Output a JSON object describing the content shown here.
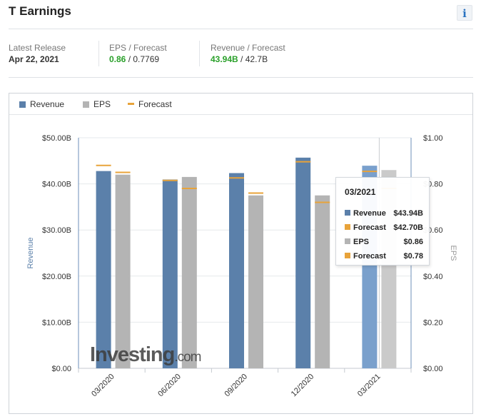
{
  "header": {
    "title": "T Earnings",
    "info_glyph": "i"
  },
  "release": {
    "latest_label": "Latest Release",
    "latest_date": "Apr 22, 2021",
    "eps_label": "EPS / Forecast",
    "eps_actual": "0.86",
    "eps_forecast": "0.7769",
    "rev_label": "Revenue / Forecast",
    "rev_actual": "43.94B",
    "rev_forecast": "42.7B",
    "separator": " / "
  },
  "colors": {
    "revenue": "#5b80aa",
    "eps": "#b4b4b4",
    "forecast": "#e8a33a",
    "actual_green": "#2aa02a"
  },
  "legend": {
    "revenue": "Revenue",
    "eps": "EPS",
    "forecast": "Forecast"
  },
  "watermark": {
    "brand": "Investing",
    "suffix": ".com"
  },
  "tooltip": {
    "title": "03/2021",
    "rows": [
      {
        "label": "Revenue",
        "value": "$43.94B",
        "color": "#5b80aa"
      },
      {
        "label": "Forecast",
        "value": "$42.70B",
        "color": "#e8a33a"
      },
      {
        "label": "EPS",
        "value": "$0.86",
        "color": "#b4b4b4"
      },
      {
        "label": "Forecast",
        "value": "$0.78",
        "color": "#e8a33a"
      }
    ]
  },
  "chart_data": {
    "type": "bar",
    "categories": [
      "03/2020",
      "06/2020",
      "09/2020",
      "12/2020",
      "03/2021"
    ],
    "series": [
      {
        "name": "Revenue",
        "axis": "left",
        "values": [
          42.78,
          40.95,
          42.34,
          45.69,
          43.94
        ]
      },
      {
        "name": "Forecast",
        "axis": "left",
        "values": [
          44.0,
          40.75,
          41.3,
          44.8,
          42.7
        ]
      },
      {
        "name": "EPS",
        "axis": "right",
        "values": [
          0.84,
          0.83,
          0.75,
          0.75,
          0.86
        ]
      },
      {
        "name": "Forecast",
        "axis": "right",
        "values": [
          0.85,
          0.78,
          0.76,
          0.72,
          0.78
        ]
      }
    ],
    "ylabel": "Revenue",
    "y2label": "EPS",
    "ylim": [
      0,
      50
    ],
    "y2lim": [
      0,
      1.0
    ],
    "yticks": [
      "$0.00",
      "$10.00B",
      "$20.00B",
      "$30.00B",
      "$40.00B",
      "$50.00B"
    ],
    "y2ticks": [
      "$0.00",
      "$0.20",
      "$0.40",
      "$0.60",
      "$0.80",
      "$1.00"
    ],
    "highlighted_category": "03/2021",
    "grid": true,
    "legend_position": "top-left"
  }
}
